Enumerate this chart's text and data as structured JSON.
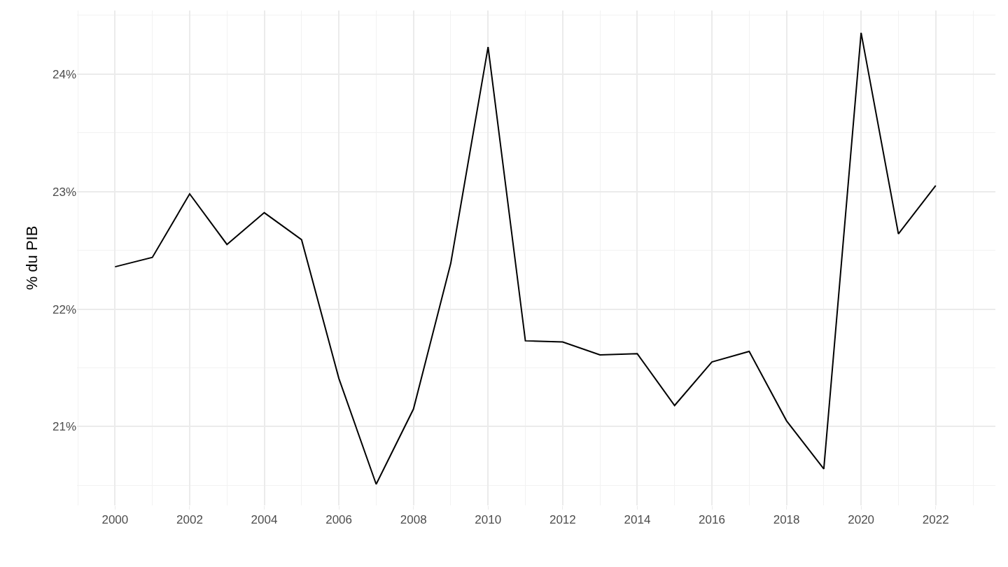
{
  "chart_data": {
    "type": "line",
    "ylabel": "% du PIB",
    "x": [
      2000,
      2001,
      2002,
      2003,
      2004,
      2005,
      2006,
      2007,
      2008,
      2009,
      2010,
      2011,
      2012,
      2013,
      2014,
      2015,
      2016,
      2017,
      2018,
      2019,
      2020,
      2021,
      2022
    ],
    "series": [
      {
        "color": "#000000",
        "values": [
          22.36,
          22.44,
          22.98,
          22.55,
          22.82,
          22.59,
          21.41,
          20.51,
          21.15,
          22.39,
          24.23,
          21.73,
          21.72,
          21.61,
          21.62,
          21.18,
          21.55,
          21.64,
          21.05,
          20.64,
          24.35,
          22.64,
          23.05
        ]
      }
    ],
    "xlim": [
      1998.98,
      2023.6
    ],
    "xticks": [
      2000,
      2002,
      2004,
      2006,
      2008,
      2010,
      2012,
      2014,
      2016,
      2018,
      2020,
      2022
    ],
    "ylim": [
      20.33,
      24.54
    ],
    "yticks": [
      {
        "value": 21,
        "label": "21%"
      },
      {
        "value": 22,
        "label": "22%"
      },
      {
        "value": 23,
        "label": "23%"
      },
      {
        "value": 24,
        "label": "24%"
      }
    ],
    "grid": true,
    "marker": "none",
    "line_style": "solid"
  }
}
